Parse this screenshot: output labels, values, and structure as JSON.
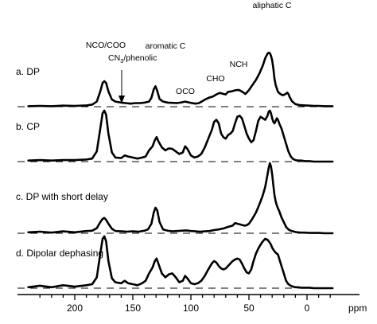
{
  "chart_data": {
    "type": "line",
    "xlabel": "ppm",
    "x_reversed": true,
    "xlim": [
      240,
      -22
    ],
    "ticks": [
      200,
      150,
      100,
      50,
      0
    ],
    "grid": false,
    "series": [
      {
        "name": "a. DP",
        "x": [
          240,
          230,
          220,
          210,
          200,
          190,
          185,
          181,
          178,
          176,
          174.5,
          173,
          171,
          168,
          165,
          160,
          156,
          152,
          148,
          144,
          140,
          136,
          134,
          132,
          130.5,
          129,
          127,
          124,
          120,
          116,
          112,
          108,
          105,
          102,
          99,
          96,
          93,
          90,
          87,
          84,
          81,
          78,
          75,
          72,
          70,
          68,
          65,
          62,
          59,
          57,
          55,
          53,
          50,
          47,
          44,
          41,
          38,
          36,
          34,
          33,
          32,
          31,
          30,
          29,
          28,
          27,
          26,
          25,
          23,
          21,
          19,
          17,
          16,
          15,
          13,
          10,
          6,
          2,
          -2,
          -6,
          -10,
          -15,
          -22
        ],
        "y": [
          0.02,
          0.03,
          0.02,
          0.04,
          0.03,
          0.05,
          0.08,
          0.2,
          0.6,
          0.93,
          1.0,
          0.93,
          0.6,
          0.28,
          0.2,
          0.16,
          0.14,
          0.12,
          0.14,
          0.14,
          0.16,
          0.2,
          0.35,
          0.68,
          0.8,
          0.62,
          0.3,
          0.2,
          0.16,
          0.15,
          0.14,
          0.17,
          0.2,
          0.17,
          0.14,
          0.12,
          0.14,
          0.22,
          0.3,
          0.36,
          0.4,
          0.48,
          0.54,
          0.5,
          0.48,
          0.58,
          0.6,
          0.64,
          0.66,
          0.62,
          0.56,
          0.5,
          0.65,
          0.85,
          1.05,
          1.3,
          1.62,
          1.9,
          2.08,
          2.12,
          2.1,
          2.0,
          1.82,
          1.5,
          1.1,
          0.85,
          0.72,
          0.58,
          0.5,
          0.45,
          0.48,
          0.55,
          0.5,
          0.38,
          0.22,
          0.1,
          0.06,
          0.05,
          0.04,
          0.03,
          0.03,
          0.02,
          0.02
        ]
      },
      {
        "name": "b. CP",
        "x": [
          240,
          230,
          220,
          210,
          200,
          190,
          185,
          181,
          178,
          176,
          174.5,
          173,
          171,
          168,
          165,
          160,
          157,
          154,
          150,
          146,
          142,
          139,
          136,
          133,
          131,
          129.5,
          128,
          125,
          122,
          119,
          116,
          113,
          110,
          107,
          105,
          103,
          100,
          97,
          94,
          91,
          88,
          85,
          82,
          80,
          78,
          76,
          74,
          72,
          70,
          68,
          66,
          64,
          62,
          60,
          58,
          56,
          54,
          52,
          50,
          48,
          46,
          44,
          42,
          40,
          38,
          36,
          34,
          33,
          32,
          31,
          30,
          29,
          28,
          27,
          26,
          25,
          24,
          22,
          20,
          18,
          16,
          14,
          12,
          10,
          8,
          5,
          2,
          -2,
          -6,
          -10,
          -15,
          -22
        ],
        "y": [
          0.02,
          0.03,
          0.02,
          0.03,
          0.03,
          0.04,
          0.06,
          0.2,
          0.65,
          0.95,
          1.0,
          0.92,
          0.55,
          0.18,
          0.08,
          0.07,
          0.12,
          0.1,
          0.08,
          0.06,
          0.08,
          0.1,
          0.22,
          0.3,
          0.42,
          0.48,
          0.4,
          0.28,
          0.22,
          0.26,
          0.25,
          0.2,
          0.15,
          0.18,
          0.3,
          0.25,
          0.12,
          0.08,
          0.1,
          0.15,
          0.28,
          0.45,
          0.62,
          0.78,
          0.82,
          0.75,
          0.55,
          0.48,
          0.45,
          0.52,
          0.55,
          0.6,
          0.75,
          0.88,
          0.9,
          0.85,
          0.7,
          0.55,
          0.45,
          0.38,
          0.42,
          0.6,
          0.8,
          0.88,
          0.85,
          0.82,
          0.9,
          0.98,
          1.0,
          0.95,
          0.85,
          0.78,
          0.75,
          0.8,
          0.85,
          0.82,
          0.75,
          0.65,
          0.5,
          0.35,
          0.2,
          0.1,
          0.05,
          0.03,
          0.02,
          0.02,
          0.01,
          0.01,
          0.0,
          0.0,
          0.0,
          0.0
        ]
      },
      {
        "name": "c. DP with short delay",
        "x": [
          240,
          230,
          220,
          210,
          200,
          190,
          185,
          181,
          178,
          176,
          174.5,
          173,
          171,
          168,
          165,
          160,
          155,
          150,
          145,
          140,
          137,
          134,
          132,
          130.5,
          129,
          127,
          124,
          120,
          116,
          112,
          108,
          104,
          100,
          96,
          92,
          88,
          84,
          80,
          76,
          72,
          68,
          64,
          62,
          60,
          58,
          56,
          54,
          52,
          50,
          48,
          46,
          44,
          42,
          40,
          38,
          36,
          35,
          34,
          33,
          32,
          31,
          30,
          29,
          28,
          27,
          26,
          25,
          24,
          22,
          20,
          18,
          16,
          14,
          12,
          10,
          8,
          5,
          2,
          -2,
          -6,
          -10,
          -15,
          -22
        ],
        "y": [
          0.03,
          0.05,
          0.02,
          0.06,
          0.03,
          0.07,
          0.08,
          0.16,
          0.35,
          0.45,
          0.48,
          0.42,
          0.3,
          0.14,
          0.07,
          0.06,
          0.05,
          0.06,
          0.05,
          0.08,
          0.12,
          0.3,
          0.65,
          0.8,
          0.72,
          0.35,
          0.12,
          0.08,
          0.06,
          0.07,
          0.08,
          0.09,
          0.07,
          0.06,
          0.05,
          0.06,
          0.07,
          0.1,
          0.12,
          0.15,
          0.2,
          0.24,
          0.32,
          0.3,
          0.28,
          0.26,
          0.24,
          0.25,
          0.3,
          0.4,
          0.52,
          0.65,
          0.82,
          1.0,
          1.2,
          1.45,
          1.65,
          1.85,
          2.05,
          2.2,
          2.1,
          1.85,
          1.5,
          1.2,
          1.0,
          0.88,
          0.78,
          0.7,
          0.5,
          0.35,
          0.2,
          0.12,
          0.08,
          0.06,
          0.04,
          0.03,
          0.02,
          0.02,
          0.01,
          0.01,
          0.01,
          0.0,
          0.0
        ]
      },
      {
        "name": "d. Dipolar dephasing",
        "x": [
          240,
          230,
          220,
          210,
          200,
          190,
          185,
          181,
          178,
          176,
          174.5,
          173,
          171,
          168,
          165,
          160,
          157,
          154,
          150,
          146,
          142,
          139,
          136,
          133,
          131,
          129.5,
          128,
          125,
          122,
          119,
          116,
          113,
          110,
          107,
          105,
          103,
          100,
          97,
          94,
          91,
          88,
          85,
          82,
          80,
          78,
          76,
          74,
          72,
          70,
          68,
          66,
          64,
          62,
          60,
          58,
          56,
          54,
          52,
          50,
          48,
          46,
          44,
          42,
          40,
          38,
          36,
          34,
          33,
          32,
          31,
          30,
          29,
          28,
          27,
          26,
          25,
          24,
          22,
          20,
          18,
          16,
          14,
          12,
          10,
          8,
          5,
          2,
          -2,
          -6,
          -10,
          -15,
          -22
        ],
        "y": [
          0.02,
          0.05,
          0.02,
          0.06,
          0.03,
          0.06,
          0.08,
          0.22,
          0.7,
          1.0,
          1.05,
          0.95,
          0.55,
          0.2,
          0.12,
          0.1,
          0.15,
          0.1,
          0.08,
          0.06,
          0.1,
          0.15,
          0.3,
          0.42,
          0.55,
          0.6,
          0.5,
          0.3,
          0.22,
          0.28,
          0.3,
          0.22,
          0.12,
          0.15,
          0.25,
          0.2,
          0.1,
          0.08,
          0.1,
          0.15,
          0.25,
          0.38,
          0.5,
          0.55,
          0.52,
          0.45,
          0.4,
          0.38,
          0.4,
          0.45,
          0.5,
          0.55,
          0.58,
          0.6,
          0.58,
          0.5,
          0.4,
          0.32,
          0.3,
          0.38,
          0.55,
          0.7,
          0.8,
          0.88,
          0.95,
          1.0,
          0.98,
          0.95,
          0.92,
          0.88,
          0.82,
          0.78,
          0.75,
          0.72,
          0.7,
          0.68,
          0.6,
          0.45,
          0.3,
          0.15,
          0.08,
          0.05,
          0.03,
          0.02,
          0.02,
          0.01,
          0.01,
          0.01,
          0.0,
          0.0,
          0.0,
          0.0
        ]
      }
    ],
    "annotations": [
      {
        "text": "NCO/COO",
        "ppm": 174
      },
      {
        "text": "CN3/phenolic",
        "ppm": 158
      },
      {
        "text": "aromatic C",
        "ppm": 130
      },
      {
        "text": "OCO",
        "ppm": 105
      },
      {
        "text": "CHO",
        "ppm": 72
      },
      {
        "text": "NCH",
        "ppm": 57
      },
      {
        "text": "aliphatic C",
        "ppm": 30
      }
    ]
  }
}
